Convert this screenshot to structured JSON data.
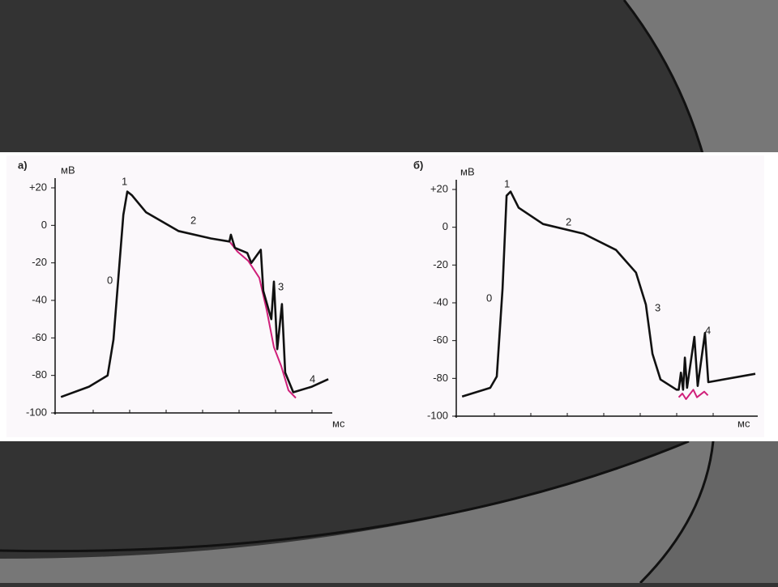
{
  "chart_data": [
    {
      "type": "line",
      "panel_label": "а)",
      "y_label": "мВ",
      "x_label": "мс",
      "phase_labels": [
        "0",
        "1",
        "2",
        "3",
        "4"
      ],
      "xlim": [
        0,
        7.7
      ],
      "ylim": [
        -100,
        20
      ],
      "yticks": [
        {
          "value": 20,
          "label": "+20"
        },
        0,
        -20,
        -40,
        -60,
        -80,
        -100
      ],
      "series": [
        {
          "color": "#111111",
          "x": [
            0.16,
            0.93,
            1.44,
            1.6,
            1.87,
            1.98,
            2.11,
            2.49,
            3.38,
            4.27,
            4.78,
            4.82,
            4.93,
            5.27,
            5.38,
            5.64,
            5.71,
            5.93,
            6.0,
            6.09,
            6.22,
            6.31,
            6.53,
            7.04,
            7.49
          ],
          "values": [
            -91.5,
            -86,
            -80,
            -61,
            5.6,
            18,
            16,
            7,
            -3,
            -7,
            -8.6,
            -5,
            -12,
            -14.7,
            -20,
            -13,
            -35,
            -50,
            -30,
            -66,
            -42,
            -78.5,
            -89,
            -86,
            -82
          ]
        },
        {
          "color": "#d0207a",
          "x": [
            4.8,
            5.0,
            5.3,
            5.6,
            5.8,
            6.0,
            6.2,
            6.4,
            6.6
          ],
          "values": [
            -9,
            -14,
            -19,
            -28,
            -45,
            -65,
            -75,
            -88,
            -92
          ]
        }
      ]
    },
    {
      "type": "line",
      "panel_label": "б)",
      "y_label": "мВ",
      "x_label": "мс",
      "phase_labels": [
        "0",
        "1",
        "2",
        "3",
        "4"
      ],
      "xlim": [
        0,
        8.3
      ],
      "ylim": [
        -100,
        20
      ],
      "yticks": [
        {
          "value": 20,
          "label": "+20"
        },
        0,
        -20,
        -40,
        -60,
        -80,
        -100
      ],
      "series": [
        {
          "color": "#111111",
          "x": [
            0.16,
            0.93,
            1.11,
            1.27,
            1.38,
            1.49,
            1.71,
            2.38,
            3.49,
            4.38,
            4.93,
            5.2,
            5.38,
            5.6,
            6.04,
            6.1,
            6.16,
            6.22,
            6.27,
            6.33,
            6.53,
            6.62,
            6.82,
            6.91,
            8.2
          ],
          "values": [
            -89.6,
            -85,
            -79,
            -32.6,
            16.7,
            18.9,
            10.3,
            1.7,
            -3.4,
            -12,
            -24,
            -41,
            -67,
            -80.6,
            -86,
            -86,
            -77,
            -86,
            -69,
            -85,
            -58,
            -84,
            -56,
            -82,
            -77.6
          ]
        },
        {
          "color": "#d0207a",
          "x": [
            6.1,
            6.2,
            6.3,
            6.5,
            6.6,
            6.8,
            6.9
          ],
          "values": [
            -90,
            -88,
            -91,
            -86,
            -90,
            -87,
            -89
          ]
        }
      ]
    }
  ]
}
